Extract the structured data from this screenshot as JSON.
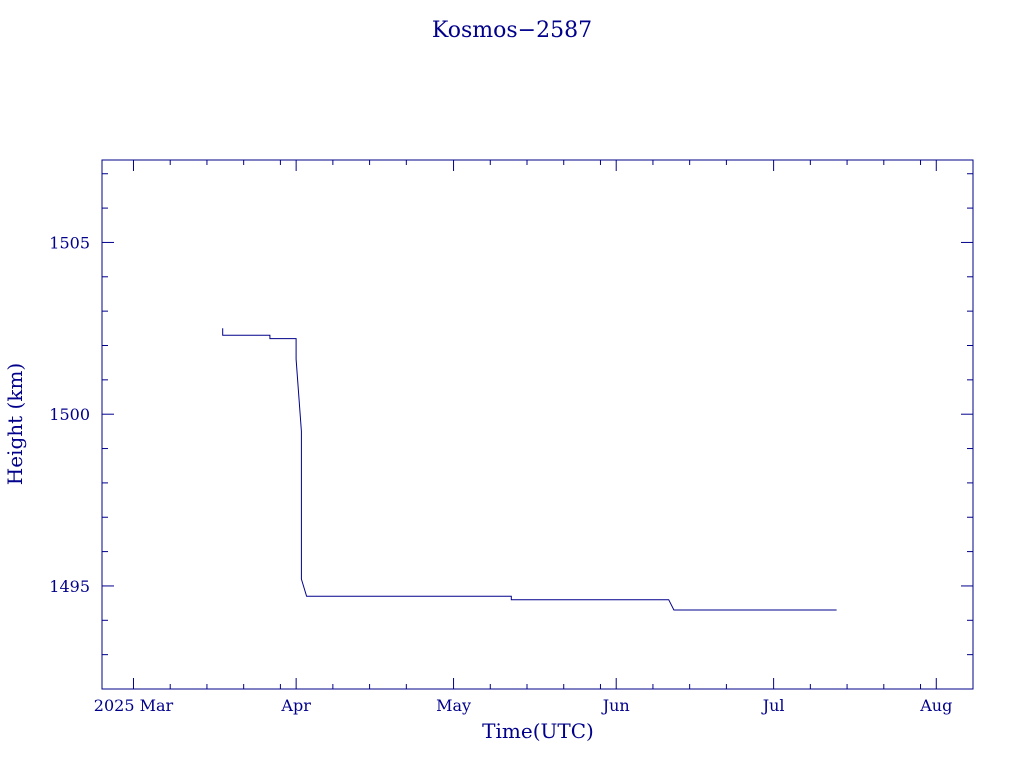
{
  "chart_data": {
    "type": "line",
    "title": "Kosmos−2587",
    "xlabel": "Time(UTC)",
    "ylabel": "Height (km)",
    "color": "#00008b",
    "grid": false,
    "xlim": [
      "2025-02-23",
      "2025-08-08"
    ],
    "ylim": [
      1492.0,
      1507.4
    ],
    "x_tick_labels": [
      "2025 Mar",
      "Apr",
      "May",
      "Jun",
      "Jul",
      "Aug"
    ],
    "x_tick_dates": [
      "2025-03-01",
      "2025-04-01",
      "2025-05-01",
      "2025-06-01",
      "2025-07-01",
      "2025-08-01"
    ],
    "y_tick_labels": [
      "1495",
      "1500",
      "1505"
    ],
    "y_tick_values": [
      1495,
      1500,
      1505
    ],
    "series": [
      {
        "points": [
          [
            "2025-03-18",
            1502.5
          ],
          [
            "2025-03-18",
            1502.3
          ],
          [
            "2025-03-27",
            1502.3
          ],
          [
            "2025-03-27",
            1502.2
          ],
          [
            "2025-04-01",
            1502.2
          ],
          [
            "2025-04-01",
            1501.6
          ],
          [
            "2025-04-02",
            1499.5
          ],
          [
            "2025-04-02",
            1498.3
          ],
          [
            "2025-04-02",
            1497.2
          ],
          [
            "2025-04-02",
            1495.2
          ],
          [
            "2025-04-03",
            1494.7
          ],
          [
            "2025-05-12",
            1494.7
          ],
          [
            "2025-05-12",
            1494.6
          ],
          [
            "2025-06-11",
            1494.6
          ],
          [
            "2025-06-12",
            1494.3
          ],
          [
            "2025-07-13",
            1494.3
          ]
        ]
      }
    ]
  }
}
